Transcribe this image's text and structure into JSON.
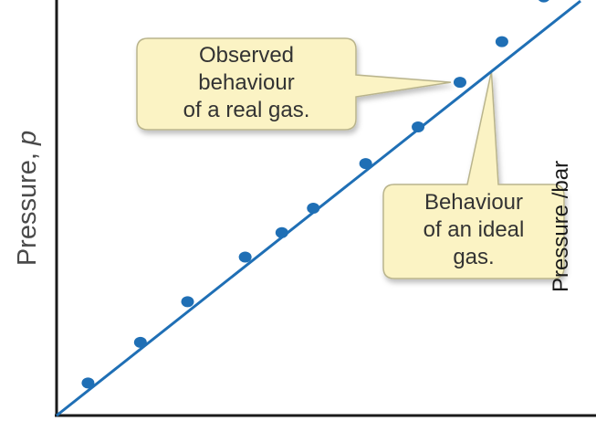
{
  "chart_data": {
    "type": "scatter",
    "title": "",
    "ylabel": "Pressure, ",
    "ylabel_var": "p",
    "xlabel": "",
    "grid": false,
    "xlim": [
      0,
      10
    ],
    "ylim": [
      0,
      10
    ],
    "series": [
      {
        "points": [
          {
            "x": 0.6,
            "y": 0.8
          },
          {
            "x": 1.6,
            "y": 1.8
          },
          {
            "x": 2.5,
            "y": 2.8
          },
          {
            "x": 3.6,
            "y": 3.9
          },
          {
            "x": 4.3,
            "y": 4.5
          },
          {
            "x": 4.9,
            "y": 5.1
          },
          {
            "x": 5.9,
            "y": 6.2
          },
          {
            "x": 6.9,
            "y": 7.1
          },
          {
            "x": 7.7,
            "y": 8.2
          },
          {
            "x": 8.5,
            "y": 9.2
          },
          {
            "x": 9.3,
            "y": 10.3
          }
        ]
      },
      {
        "type": "line",
        "points": [
          {
            "x": 0,
            "y": 0
          },
          {
            "x": 10,
            "y": 10.2
          }
        ]
      }
    ],
    "annotations": [
      {
        "text": "Observed\nbehaviour\nof a real gas.",
        "target_point": 8
      },
      {
        "text": "Behaviour\nof an ideal\ngas.",
        "target_x": 8.3
      }
    ],
    "edge_text": "Pressure /bar",
    "colors": {
      "marker": "#1f6fb5",
      "line": "#1f6fb5",
      "axis": "#1a1a1a",
      "callout_fill": "#fbf3c4",
      "callout_stroke": "#b9b48c"
    }
  }
}
